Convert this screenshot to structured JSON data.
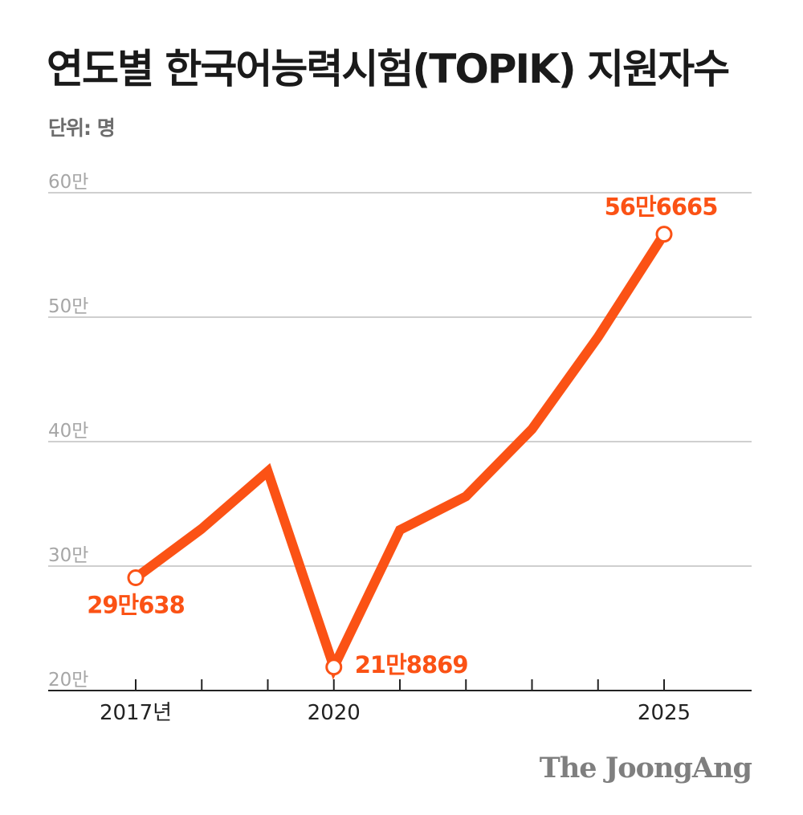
{
  "title": "연도별 한국어능력시험(TOPIK) 지원자수",
  "unit_label": "단위: 명",
  "brand": "The JoongAng",
  "colors": {
    "line": "#fb5215",
    "grid": "#cfcfcf",
    "axis": "#222222",
    "tick_label": "#a6a6a6",
    "title": "#1a1a1a"
  },
  "chart_data": {
    "type": "line",
    "x": [
      2017,
      2018,
      2019,
      2020,
      2021,
      2022,
      2023,
      2024,
      2025
    ],
    "x_tick_labels": [
      {
        "x": 2017,
        "label": "2017년"
      },
      {
        "x": 2020,
        "label": "2020"
      },
      {
        "x": 2025,
        "label": "2025"
      }
    ],
    "series": [
      {
        "values": [
          290638,
          330000,
          376000,
          218869,
          329000,
          356000,
          410000,
          484000,
          566665
        ]
      }
    ],
    "ylim": [
      200000,
      600000
    ],
    "y_ticks": [
      {
        "value": 200000,
        "label": "20만"
      },
      {
        "value": 300000,
        "label": "30만"
      },
      {
        "value": 400000,
        "label": "40만"
      },
      {
        "value": 500000,
        "label": "50만"
      },
      {
        "value": 600000,
        "label": "60만"
      }
    ],
    "annotations": [
      {
        "x": 2017,
        "value": 290638,
        "label": "29만638",
        "anchor": "below"
      },
      {
        "x": 2020,
        "value": 218869,
        "label": "21만8869",
        "anchor": "right"
      },
      {
        "x": 2025,
        "value": 566665,
        "label": "56만6665",
        "anchor": "above"
      }
    ],
    "grid": true
  }
}
